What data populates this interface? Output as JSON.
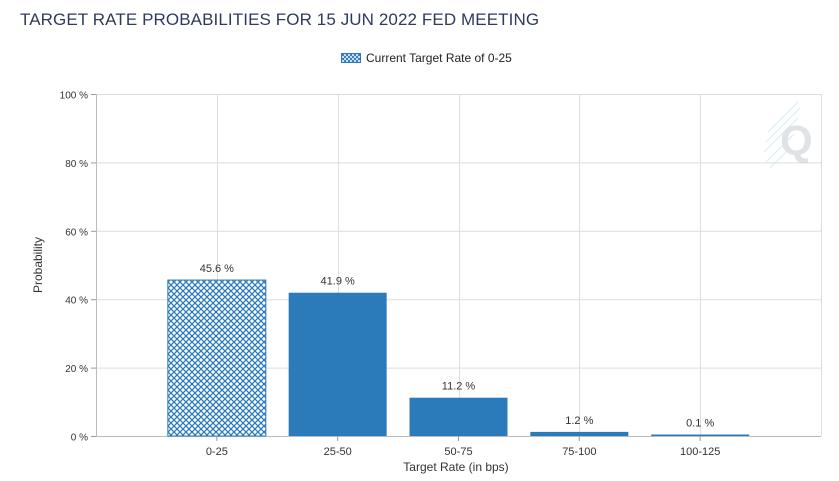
{
  "title": "TARGET RATE PROBABILITIES FOR 15 JUN 2022 FED MEETING",
  "legend": {
    "label": "Current Target Rate of 0-25"
  },
  "colors": {
    "bar": "#2b7bbb",
    "hatch_line": "#2b7bbb",
    "hatch_bg": "#ffffff",
    "grid": "#dddddd",
    "title": "#2f3b5c"
  },
  "chart_data": {
    "type": "bar",
    "title": "TARGET RATE PROBABILITIES FOR 15 JUN 2022 FED MEETING",
    "xlabel": "Target Rate (in bps)",
    "ylabel": "Probability",
    "categories": [
      "0-25",
      "25-50",
      "50-75",
      "75-100",
      "100-125"
    ],
    "values": [
      45.6,
      41.9,
      11.2,
      1.2,
      0.1
    ],
    "value_labels": [
      "45.6 %",
      "41.9 %",
      "11.2 %",
      "1.2 %",
      "0.1 %"
    ],
    "highlighted_category": "0-25",
    "ylim": [
      0,
      100
    ],
    "yticks": [
      0,
      20,
      40,
      60,
      80,
      100
    ],
    "ytick_labels": [
      "0 %",
      "20 %",
      "40 %",
      "60 %",
      "80 %",
      "100 %"
    ],
    "grid": true,
    "legend_position": "top-center"
  }
}
